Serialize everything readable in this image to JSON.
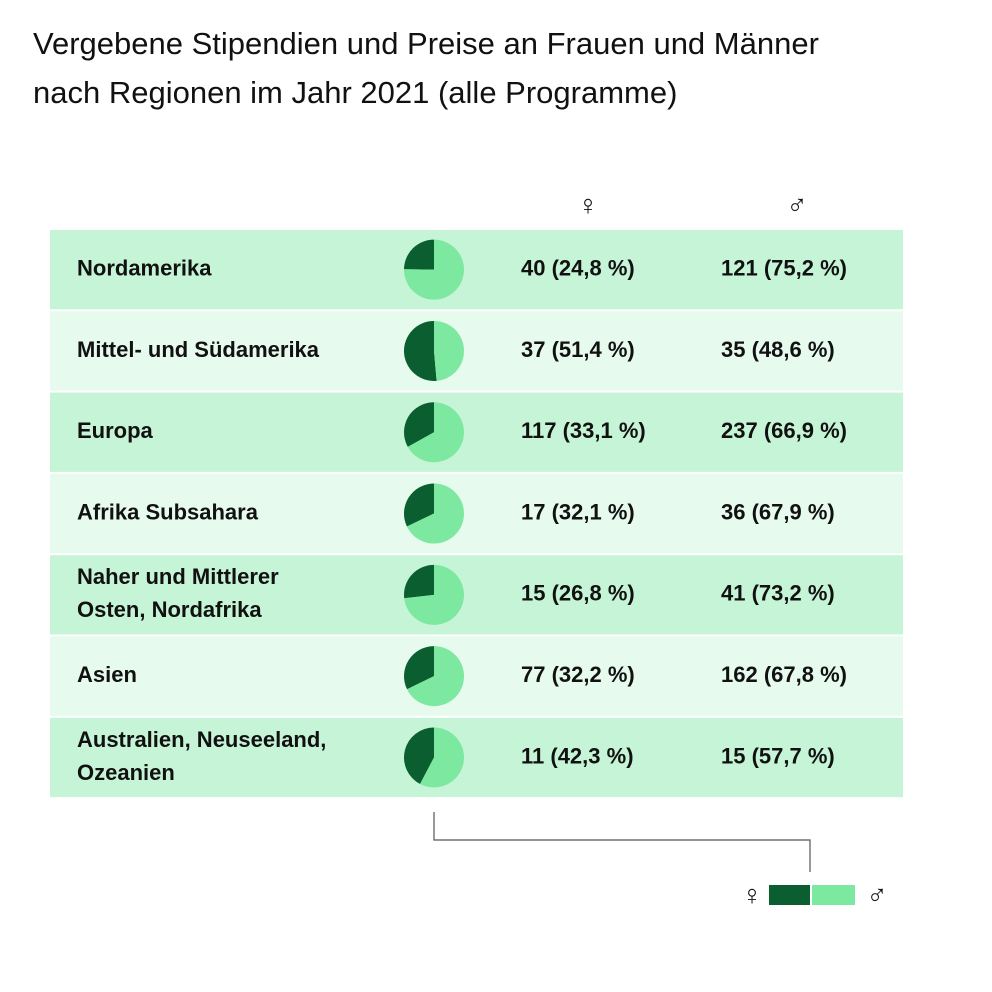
{
  "title": [
    "Vergebene Stipendien und Preise an Frauen und Männer",
    "nach Regionen im Jahr 2021 (alle Programme)"
  ],
  "columns": [
    "♀",
    "♂"
  ],
  "colors": [
    "#0b5e2f",
    "#7de8a0"
  ],
  "rows": [
    {
      "region": [
        "Nordamerika"
      ],
      "values": [
        24.8,
        75.2
      ],
      "value_labels": [
        "40 (24,8 %)",
        "121 (75,2 %)"
      ]
    },
    {
      "region": [
        "Mittel- und Südamerika"
      ],
      "values": [
        51.4,
        48.6
      ],
      "value_labels": [
        "37 (51,4 %)",
        "35 (48,6 %)"
      ]
    },
    {
      "region": [
        "Europa"
      ],
      "values": [
        33.1,
        66.9
      ],
      "value_labels": [
        "117 (33,1 %)",
        "237 (66,9 %)"
      ]
    },
    {
      "region": [
        "Afrika Subsahara"
      ],
      "values": [
        32.1,
        67.9
      ],
      "value_labels": [
        "17 (32,1 %)",
        "36 (67,9 %)"
      ]
    },
    {
      "region": [
        "Naher und Mittlerer",
        "Osten, Nordafrika"
      ],
      "values": [
        26.8,
        73.2
      ],
      "value_labels": [
        "15 (26,8 %)",
        "41 (73,2 %)"
      ]
    },
    {
      "region": [
        "Asien"
      ],
      "values": [
        32.2,
        67.8
      ],
      "value_labels": [
        "77 (32,2 %)",
        "162 (67,8 %)"
      ]
    },
    {
      "region": [
        "Australien, Neuseeland,",
        "Ozeanien"
      ],
      "values": [
        42.3,
        57.7
      ],
      "value_labels": [
        "11 (42,3 %)",
        "15 (57,7 %)"
      ]
    }
  ]
}
